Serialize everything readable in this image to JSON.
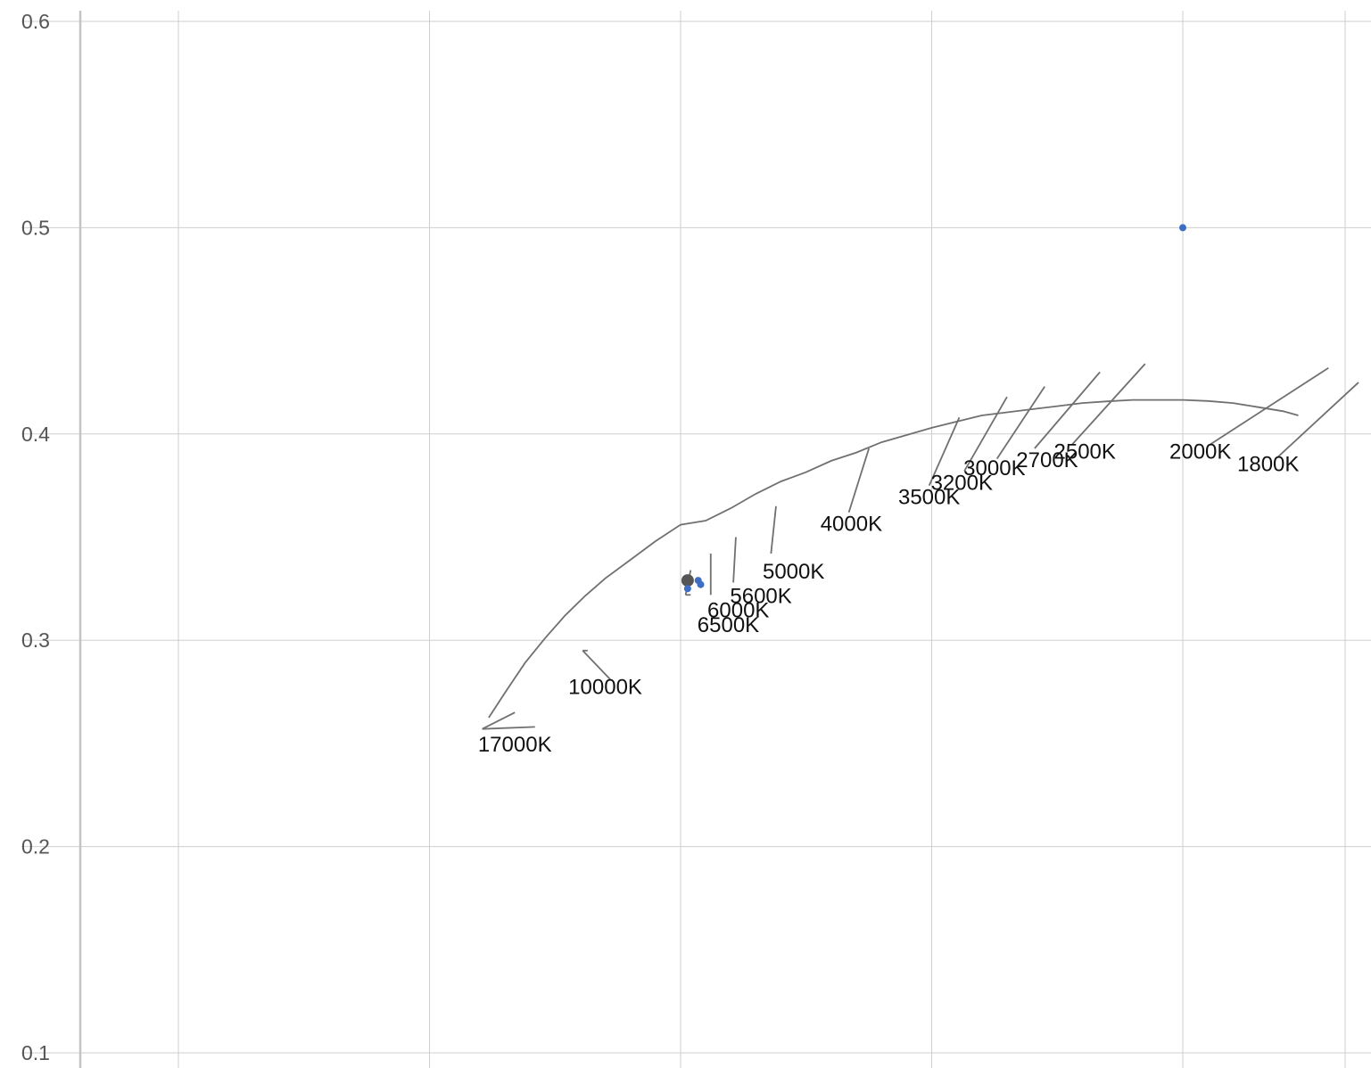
{
  "chart_data": {
    "type": "scatter",
    "title": "",
    "xlabel": "",
    "ylabel": "",
    "xlim": [
      0.105,
      0.36
    ],
    "ylim": [
      0.1,
      0.61
    ],
    "grid": true,
    "x_gridlines": [
      0.125,
      0.175,
      0.225,
      0.275,
      0.325
    ],
    "y_ticks": [
      0.1,
      0.2,
      0.3,
      0.4,
      0.5,
      0.6
    ],
    "y_tick_labels": [
      "0.1",
      "0.2",
      "0.3",
      "0.4",
      "0.5",
      "0.6"
    ],
    "locus": {
      "x": [
        0.1868,
        0.19,
        0.194,
        0.198,
        0.202,
        0.206,
        0.21,
        0.215,
        0.22,
        0.225,
        0.23,
        0.235,
        0.24,
        0.245,
        0.25,
        0.255,
        0.26,
        0.265,
        0.27,
        0.275,
        0.28,
        0.285,
        0.29,
        0.295,
        0.3,
        0.305,
        0.31,
        0.315,
        0.32,
        0.325,
        0.33,
        0.335,
        0.34,
        0.345,
        0.348
      ],
      "y": [
        0.2625,
        0.2745,
        0.289,
        0.301,
        0.312,
        0.3215,
        0.33,
        0.339,
        0.348,
        0.356,
        0.358,
        0.364,
        0.371,
        0.377,
        0.3815,
        0.387,
        0.391,
        0.396,
        0.3995,
        0.403,
        0.406,
        0.409,
        0.4105,
        0.412,
        0.4135,
        0.415,
        0.4158,
        0.4165,
        0.4165,
        0.4165,
        0.416,
        0.415,
        0.413,
        0.411,
        0.409
      ]
    },
    "isotherms": [
      {
        "label": "17000K",
        "x1": 0.1855,
        "y1": 0.257,
        "x2": 0.192,
        "y2": 0.265,
        "lx": 0.196,
        "ly": 0.258,
        "tx": 0.192,
        "ty": 0.246
      },
      {
        "label": "10000K",
        "x1": 0.2055,
        "y1": 0.295,
        "x2": 0.2065,
        "y2": 0.295,
        "lx": 0.211,
        "ly": 0.281,
        "tx": 0.21,
        "ty": 0.274
      },
      {
        "label": "6500K",
        "x1": 0.226,
        "y1": 0.322,
        "x2": 0.227,
        "y2": 0.334,
        "lx": 0.227,
        "ly": 0.322,
        "tx": 0.2345,
        "ty": 0.304
      },
      {
        "label": "6000K",
        "x1": 0.231,
        "y1": 0.322,
        "x2": 0.231,
        "y2": 0.342,
        "lx": 0.231,
        "ly": 0.322,
        "tx": 0.2365,
        "ty": 0.311
      },
      {
        "label": "5600K",
        "x1": 0.2355,
        "y1": 0.328,
        "x2": 0.236,
        "y2": 0.35,
        "lx": 0.2355,
        "ly": 0.328,
        "tx": 0.241,
        "ty": 0.318
      },
      {
        "label": "5000K",
        "x1": 0.243,
        "y1": 0.342,
        "x2": 0.244,
        "y2": 0.365,
        "lx": 0.243,
        "ly": 0.342,
        "tx": 0.2475,
        "ty": 0.33
      },
      {
        "label": "4000K",
        "x1": 0.2585,
        "y1": 0.362,
        "x2": 0.2625,
        "y2": 0.393,
        "lx": 0.2585,
        "ly": 0.362,
        "tx": 0.259,
        "ty": 0.353
      },
      {
        "label": "3500K",
        "x1": 0.2745,
        "y1": 0.375,
        "x2": 0.2805,
        "y2": 0.408,
        "lx": 0.2745,
        "ly": 0.375,
        "tx": 0.2745,
        "ty": 0.366
      },
      {
        "label": "3200K",
        "x1": 0.2815,
        "y1": 0.382,
        "x2": 0.29,
        "y2": 0.418,
        "lx": 0.2815,
        "ly": 0.382,
        "tx": 0.281,
        "ty": 0.373
      },
      {
        "label": "3000K",
        "x1": 0.288,
        "y1": 0.388,
        "x2": 0.2975,
        "y2": 0.423,
        "lx": 0.288,
        "ly": 0.388,
        "tx": 0.2875,
        "ty": 0.38
      },
      {
        "label": "2700K",
        "x1": 0.2955,
        "y1": 0.393,
        "x2": 0.3085,
        "y2": 0.43,
        "lx": 0.2955,
        "ly": 0.393,
        "tx": 0.298,
        "ty": 0.384
      },
      {
        "label": "2500K",
        "x1": 0.303,
        "y1": 0.395,
        "x2": 0.3175,
        "y2": 0.434,
        "lx": 0.303,
        "ly": 0.395,
        "tx": 0.3055,
        "ty": 0.388
      },
      {
        "label": "2000K",
        "x1": 0.3305,
        "y1": 0.395,
        "x2": 0.354,
        "y2": 0.432,
        "lx": 0.3305,
        "ly": 0.395,
        "tx": 0.3285,
        "ty": 0.388
      },
      {
        "label": "1800K",
        "x1": 0.344,
        "y1": 0.389,
        "x2": 0.36,
        "y2": 0.425,
        "lx": 0.344,
        "ly": 0.389,
        "tx": 0.342,
        "ty": 0.382
      }
    ],
    "points": [
      {
        "x": 0.2264,
        "y": 0.329,
        "color": "#555555",
        "size": 7
      },
      {
        "x": 0.2264,
        "y": 0.325,
        "color": "#3c6fc4",
        "size": 4
      },
      {
        "x": 0.2285,
        "y": 0.329,
        "color": "#3c6fc4",
        "size": 4
      },
      {
        "x": 0.229,
        "y": 0.327,
        "color": "#3c6fc4",
        "size": 4
      },
      {
        "x": 0.325,
        "y": 0.5,
        "color": "#3c6fc4",
        "size": 4
      }
    ]
  }
}
